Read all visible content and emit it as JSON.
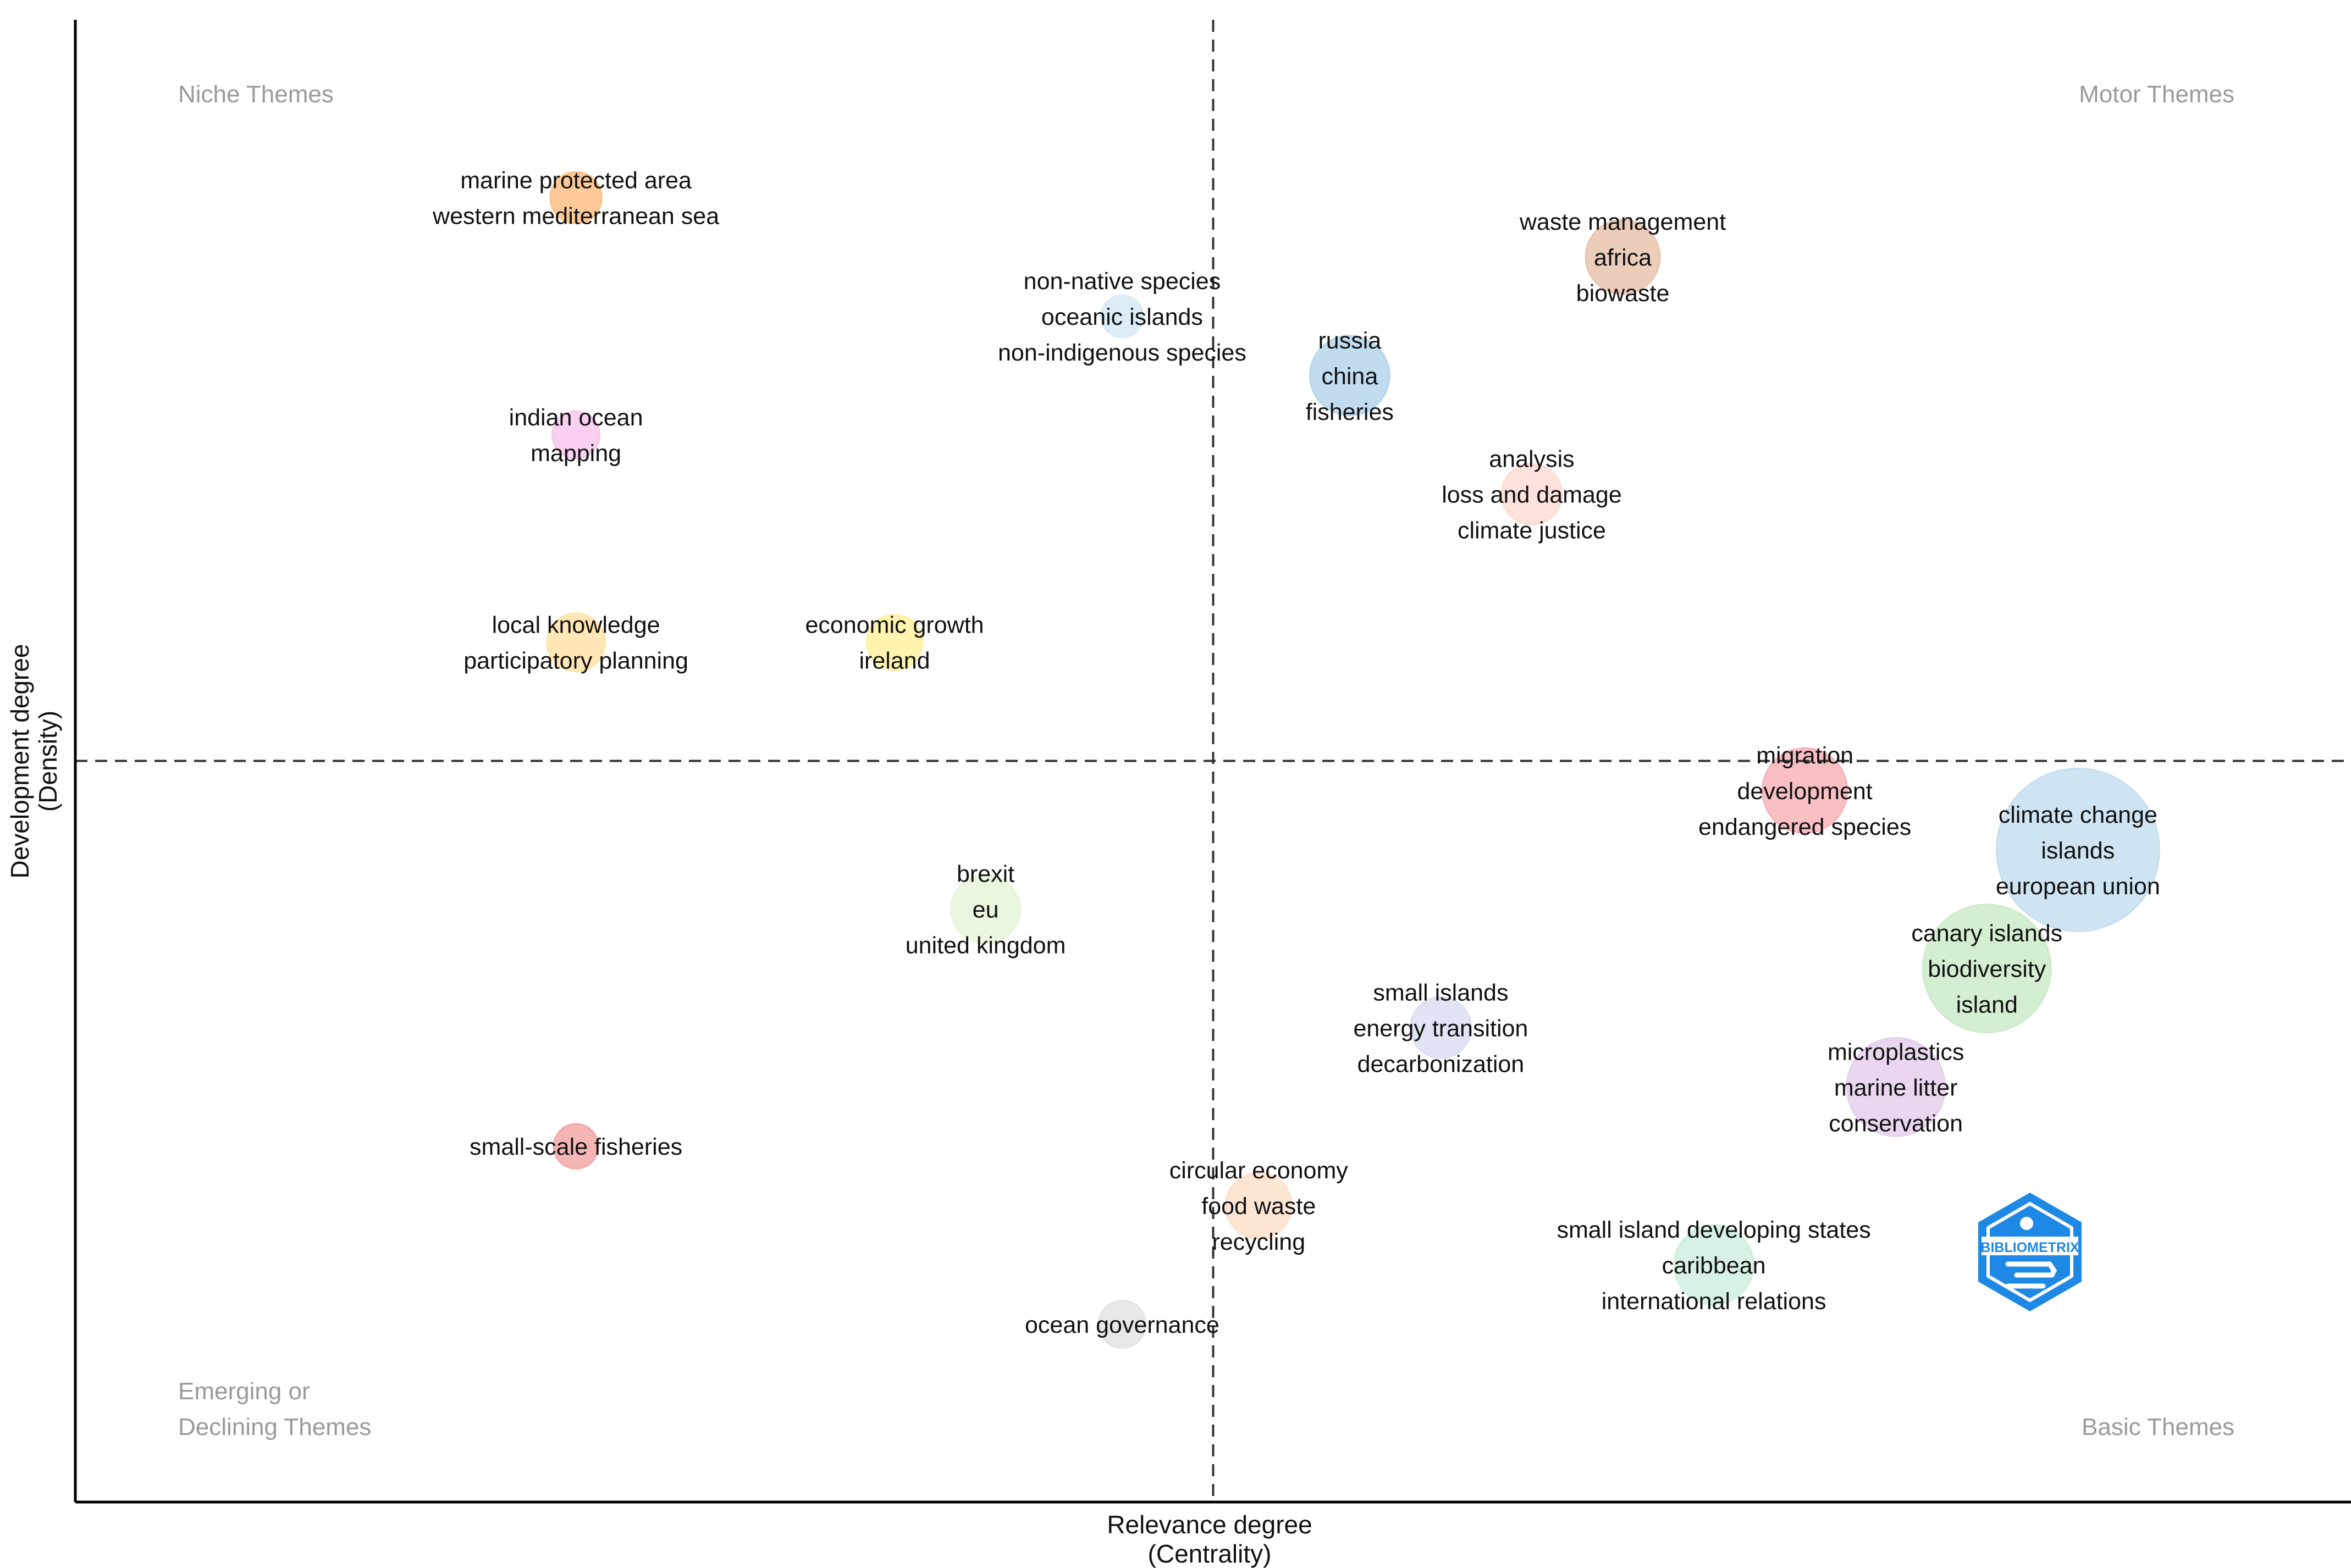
{
  "chart_data": {
    "type": "scatter",
    "subtype": "thematic-map",
    "xlabel": [
      "Relevance degree",
      "(Centrality)"
    ],
    "ylabel": [
      "Development degree",
      "(Density)"
    ],
    "xlim": [
      0,
      1
    ],
    "ylim": [
      0,
      1
    ],
    "x_divider": 0.5,
    "y_divider": 0.5,
    "grid": false,
    "quadrants": {
      "top_left": [
        "Niche Themes"
      ],
      "top_right": [
        "Motor Themes"
      ],
      "bottom_left": [
        "Emerging or",
        "Declining Themes"
      ],
      "bottom_right": [
        "Basic Themes"
      ]
    },
    "points": [
      {
        "x": 0.22,
        "y": 0.88,
        "size": 0.17,
        "color": "#fdc086",
        "labels": [
          "marine protected area",
          "western mediterranean sea"
        ]
      },
      {
        "x": 0.46,
        "y": 0.8,
        "size": 0.1,
        "color": "#d6eaf5",
        "labels": [
          "non-native species",
          "oceanic islands",
          "non-indigenous species"
        ]
      },
      {
        "x": 0.22,
        "y": 0.72,
        "size": 0.14,
        "color": "#f8c8ec",
        "labels": [
          "indian ocean",
          "mapping"
        ]
      },
      {
        "x": 0.22,
        "y": 0.58,
        "size": 0.22,
        "color": "#ffe3a8",
        "labels": [
          "local knowledge",
          "participatory planning"
        ]
      },
      {
        "x": 0.36,
        "y": 0.58,
        "size": 0.2,
        "color": "#fff2a0",
        "labels": [
          "economic growth",
          "ireland"
        ]
      },
      {
        "x": 0.68,
        "y": 0.84,
        "size": 0.34,
        "color": "#e8c4ae",
        "labels": [
          "waste management",
          "africa",
          "biowaste"
        ]
      },
      {
        "x": 0.56,
        "y": 0.76,
        "size": 0.38,
        "color": "#b6d6ec",
        "labels": [
          "russia",
          "china",
          "fisheries"
        ]
      },
      {
        "x": 0.64,
        "y": 0.68,
        "size": 0.24,
        "color": "#fddcd6",
        "labels": [
          "analysis",
          "loss and damage",
          "climate justice"
        ]
      },
      {
        "x": 0.76,
        "y": 0.48,
        "size": 0.42,
        "color": "#f8b4b8",
        "labels": [
          "migration",
          "development",
          "endangered species"
        ]
      },
      {
        "x": 0.88,
        "y": 0.44,
        "size": 1.0,
        "color": "#c6dff0",
        "labels": [
          "climate change",
          "islands",
          "european union"
        ]
      },
      {
        "x": 0.84,
        "y": 0.36,
        "size": 0.74,
        "color": "#cdebca",
        "labels": [
          "canary islands",
          "biodiversity",
          "island"
        ]
      },
      {
        "x": 0.8,
        "y": 0.28,
        "size": 0.52,
        "color": "#e6d0ec",
        "labels": [
          "microplastics",
          "marine litter",
          "conservation"
        ]
      },
      {
        "x": 0.4,
        "y": 0.4,
        "size": 0.3,
        "color": "#e6f4d8",
        "labels": [
          "brexit",
          "eu",
          "united kingdom"
        ]
      },
      {
        "x": 0.6,
        "y": 0.32,
        "size": 0.24,
        "color": "#dcdff2",
        "labels": [
          "small islands",
          "energy transition",
          "decarbonization"
        ]
      },
      {
        "x": 0.22,
        "y": 0.24,
        "size": 0.12,
        "color": "#f4a8a8",
        "labels": [
          "small-scale fisheries"
        ]
      },
      {
        "x": 0.52,
        "y": 0.2,
        "size": 0.28,
        "color": "#fde0cc",
        "labels": [
          "circular economy",
          "food waste",
          "recycling"
        ]
      },
      {
        "x": 0.72,
        "y": 0.16,
        "size": 0.38,
        "color": "#d0f0e0",
        "labels": [
          "small island developing states",
          "caribbean",
          "international relations"
        ]
      },
      {
        "x": 0.46,
        "y": 0.12,
        "size": 0.14,
        "color": "#e4e4e4",
        "labels": [
          "ocean governance"
        ]
      }
    ]
  },
  "logo": {
    "text": "BIBLIOMETRIX",
    "color": "#1e88e5"
  }
}
